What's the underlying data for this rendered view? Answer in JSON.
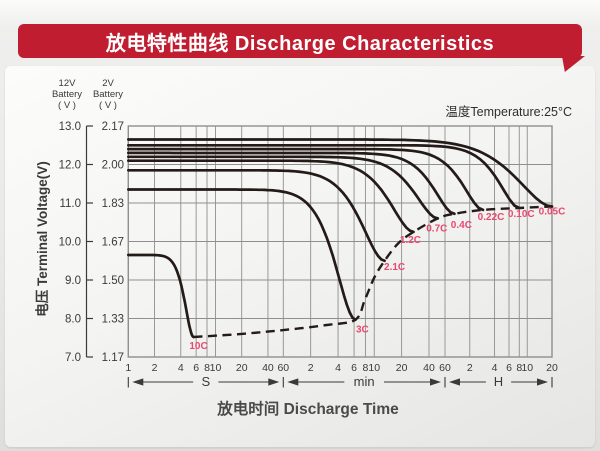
{
  "banner": {
    "title": "放电特性曲线 Discharge Characteristics"
  },
  "temperature_label": "温度Temperature:25°C",
  "x_axis_title": "放电时间 Discharge Time",
  "y_axis_title": "电压 Terminal Voltage(V)",
  "y_axis_headers": {
    "v12": "12V\nBattery\n( V )",
    "v2": "2V\nBattery\n( V )"
  },
  "colors": {
    "banner_red": "#c01d30",
    "curve": "#241b18",
    "grid": "#8f8f8f",
    "text": "#3a3a3a",
    "accent": "#e8496f"
  },
  "chart_data": {
    "type": "line",
    "title": "放电特性曲线 Discharge Characteristics",
    "xlabel": "放电时间 Discharge Time",
    "ylabel": "电压 Terminal Voltage(V)",
    "x_scale": "logarithmic time, three segments (seconds / minutes / hours)",
    "grid": true,
    "x_segments": [
      {
        "name": "S",
        "unit_s": 1,
        "ticks": [
          1,
          2,
          4,
          6,
          8,
          10,
          20,
          40,
          60
        ]
      },
      {
        "name": "min",
        "unit_s": 60,
        "ticks": [
          2,
          4,
          6,
          8,
          10,
          20,
          40,
          60
        ]
      },
      {
        "name": "H",
        "unit_s": 3600,
        "ticks": [
          2,
          4,
          6,
          8,
          10,
          20
        ]
      }
    ],
    "y_axis": {
      "v12_ticks": [
        "13.0",
        "12.0",
        "11.0",
        "10.0",
        "9.0",
        "8.0",
        "7.0"
      ],
      "v2_ticks": [
        "2.17",
        "2.00",
        "1.83",
        "1.67",
        "1.50",
        "1.33",
        "1.17"
      ],
      "range_12v": [
        7.0,
        13.0
      ],
      "range_2v": [
        1.17,
        2.17
      ]
    },
    "series": [
      {
        "label": "10C",
        "v_start": 9.65,
        "t_end_s": 5.6,
        "v_end": 7.52,
        "knee": 4.2,
        "label_offset": [
          5,
          12
        ]
      },
      {
        "label": "3C",
        "v_start": 11.35,
        "t_end_s": 372,
        "v_end": 7.97,
        "knee": 6.5,
        "label_offset": [
          7,
          13
        ]
      },
      {
        "label": "2.1C",
        "v_start": 11.85,
        "t_end_s": 780,
        "v_end": 9.5,
        "knee": 6.2,
        "label_offset": [
          10,
          9
        ]
      },
      {
        "label": "1.2C",
        "v_start": 12.1,
        "t_end_s": 1620,
        "v_end": 10.25,
        "knee": 6.8,
        "label_offset": [
          -3,
          11
        ]
      },
      {
        "label": "0.7C",
        "v_start": 12.2,
        "t_end_s": 3000,
        "v_end": 10.6,
        "knee": 7.5,
        "label_offset": [
          -1,
          13
        ]
      },
      {
        "label": "0.4C",
        "v_start": 12.3,
        "t_end_s": 4680,
        "v_end": 10.72,
        "knee": 9,
        "label_offset": [
          7,
          14
        ]
      },
      {
        "label": "0.22C",
        "v_start": 12.4,
        "t_end_s": 10440,
        "v_end": 10.82,
        "knee": 10,
        "label_offset": [
          8,
          10
        ]
      },
      {
        "label": "0.10C",
        "v_start": 12.5,
        "t_end_s": 28800,
        "v_end": 10.87,
        "knee": 11,
        "label_offset": [
          2,
          9
        ]
      },
      {
        "label": "0.05C",
        "v_start": 12.65,
        "t_end_s": 72000,
        "v_end": 10.91,
        "knee": 6.8,
        "label_offset": [
          0,
          8
        ]
      }
    ],
    "envelope_points": [
      [
        5.6,
        7.52
      ],
      [
        20,
        7.6
      ],
      [
        60,
        7.7
      ],
      [
        180,
        7.83
      ],
      [
        372,
        7.97
      ],
      [
        474,
        8.49
      ],
      [
        600,
        9.06
      ],
      [
        780,
        9.5
      ],
      [
        1100,
        9.95
      ],
      [
        1620,
        10.25
      ],
      [
        3000,
        10.6
      ],
      [
        4680,
        10.72
      ],
      [
        10440,
        10.82
      ],
      [
        28800,
        10.87
      ],
      [
        72000,
        10.91
      ]
    ],
    "annotations": [
      "10C",
      "3C",
      "2.1C",
      "1.2C",
      "0.7C",
      "0.4C",
      "0.22C",
      "0.10C",
      "0.05C"
    ]
  }
}
